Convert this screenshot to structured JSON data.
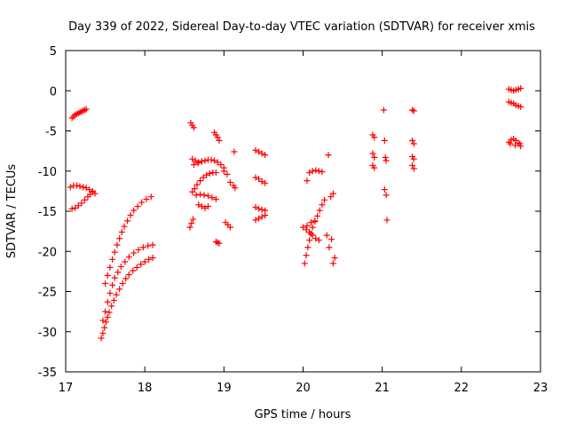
{
  "chart_data": {
    "type": "scatter",
    "title": "Day 339 of 2022, Sidereal Day-to-day VTEC variation (SDTVAR) for receiver xmis",
    "xlabel": "GPS time / hours",
    "ylabel": "SDTVAR / TECUs",
    "xlim": [
      17,
      23
    ],
    "ylim": [
      -35,
      5
    ],
    "xticks": [
      "17",
      "18",
      "19",
      "20",
      "21",
      "22",
      "23"
    ],
    "yticks": [
      "5",
      "0",
      "-5",
      "-10",
      "-15",
      "-20",
      "-25",
      "-30",
      "-35"
    ],
    "grid": false,
    "legend": "none",
    "marker": "plus",
    "color": "#ff0000",
    "series": [
      {
        "points": [
          [
            17.08,
            -3.4
          ],
          [
            17.1,
            -3.2
          ],
          [
            17.12,
            -3.0
          ],
          [
            17.14,
            -2.9
          ],
          [
            17.16,
            -2.8
          ],
          [
            17.18,
            -2.7
          ],
          [
            17.2,
            -2.6
          ],
          [
            17.22,
            -2.5
          ],
          [
            17.24,
            -2.4
          ],
          [
            17.26,
            -2.3
          ],
          [
            17.06,
            -12.0
          ],
          [
            17.1,
            -11.8
          ],
          [
            17.14,
            -11.8
          ],
          [
            17.18,
            -11.9
          ],
          [
            17.22,
            -12.0
          ],
          [
            17.26,
            -12.1
          ],
          [
            17.3,
            -12.3
          ],
          [
            17.34,
            -12.5
          ],
          [
            17.37,
            -12.8
          ],
          [
            17.08,
            -14.7
          ],
          [
            17.12,
            -14.6
          ],
          [
            17.16,
            -14.3
          ],
          [
            17.2,
            -14.0
          ],
          [
            17.24,
            -13.6
          ],
          [
            17.28,
            -13.2
          ],
          [
            17.31,
            -12.9
          ],
          [
            17.34,
            -12.6
          ],
          [
            17.45,
            -30.8
          ],
          [
            17.47,
            -30.2
          ],
          [
            17.49,
            -29.5
          ],
          [
            17.51,
            -28.8
          ],
          [
            17.53,
            -28.2
          ],
          [
            17.55,
            -27.6
          ],
          [
            17.58,
            -26.8
          ],
          [
            17.61,
            -26.1
          ],
          [
            17.64,
            -25.4
          ],
          [
            17.68,
            -24.7
          ],
          [
            17.72,
            -24.0
          ],
          [
            17.76,
            -23.4
          ],
          [
            17.8,
            -22.9
          ],
          [
            17.85,
            -22.4
          ],
          [
            17.9,
            -22.0
          ],
          [
            17.95,
            -21.6
          ],
          [
            18.0,
            -21.3
          ],
          [
            18.05,
            -21.0
          ],
          [
            18.1,
            -20.8
          ],
          [
            17.47,
            -28.6
          ],
          [
            17.5,
            -27.5
          ],
          [
            17.53,
            -26.3
          ],
          [
            17.56,
            -25.2
          ],
          [
            17.59,
            -24.2
          ],
          [
            17.62,
            -23.3
          ],
          [
            17.66,
            -22.6
          ],
          [
            17.7,
            -21.9
          ],
          [
            17.75,
            -21.3
          ],
          [
            17.8,
            -20.7
          ],
          [
            17.86,
            -20.2
          ],
          [
            17.92,
            -19.8
          ],
          [
            17.98,
            -19.5
          ],
          [
            18.04,
            -19.3
          ],
          [
            18.1,
            -19.2
          ],
          [
            17.5,
            -24.0
          ],
          [
            17.53,
            -23.0
          ],
          [
            17.56,
            -22.0
          ],
          [
            17.59,
            -21.0
          ],
          [
            17.62,
            -20.1
          ],
          [
            17.65,
            -19.2
          ],
          [
            17.68,
            -18.4
          ],
          [
            17.71,
            -17.6
          ],
          [
            17.74,
            -16.9
          ],
          [
            17.78,
            -16.2
          ],
          [
            17.82,
            -15.5
          ],
          [
            17.86,
            -14.9
          ],
          [
            17.91,
            -14.4
          ],
          [
            17.96,
            -13.9
          ],
          [
            18.02,
            -13.5
          ],
          [
            18.08,
            -13.2
          ],
          [
            18.58,
            -4.0
          ],
          [
            18.6,
            -4.3
          ],
          [
            18.62,
            -4.6
          ],
          [
            18.6,
            -8.5
          ],
          [
            18.64,
            -8.7
          ],
          [
            18.68,
            -8.9
          ],
          [
            18.72,
            -8.8
          ],
          [
            18.76,
            -8.7
          ],
          [
            18.8,
            -8.6
          ],
          [
            18.84,
            -8.6
          ],
          [
            18.88,
            -8.7
          ],
          [
            18.92,
            -8.9
          ],
          [
            18.96,
            -9.2
          ],
          [
            19.0,
            -9.6
          ],
          [
            18.62,
            -9.2
          ],
          [
            18.67,
            -9.0
          ],
          [
            18.72,
            -8.8
          ],
          [
            18.6,
            -12.6
          ],
          [
            18.63,
            -12.2
          ],
          [
            18.66,
            -11.7
          ],
          [
            18.7,
            -11.2
          ],
          [
            18.74,
            -10.8
          ],
          [
            18.78,
            -10.5
          ],
          [
            18.82,
            -10.3
          ],
          [
            18.86,
            -10.2
          ],
          [
            18.9,
            -10.2
          ],
          [
            18.65,
            -13.0
          ],
          [
            18.7,
            -12.9
          ],
          [
            18.75,
            -13.0
          ],
          [
            18.8,
            -13.1
          ],
          [
            18.85,
            -13.3
          ],
          [
            18.9,
            -13.5
          ],
          [
            18.68,
            -14.2
          ],
          [
            18.72,
            -14.4
          ],
          [
            18.76,
            -14.6
          ],
          [
            18.8,
            -14.4
          ],
          [
            18.57,
            -17.0
          ],
          [
            18.59,
            -16.5
          ],
          [
            18.61,
            -16.0
          ],
          [
            18.9,
            -18.8
          ],
          [
            18.92,
            -18.9
          ],
          [
            18.94,
            -19.0
          ],
          [
            18.88,
            -5.2
          ],
          [
            18.9,
            -5.5
          ],
          [
            18.92,
            -5.8
          ],
          [
            18.94,
            -6.2
          ],
          [
            19.0,
            -10.0
          ],
          [
            19.04,
            -10.4
          ],
          [
            19.08,
            -11.4
          ],
          [
            19.12,
            -11.8
          ],
          [
            19.14,
            -12.1
          ],
          [
            19.02,
            -16.4
          ],
          [
            19.05,
            -16.7
          ],
          [
            19.08,
            -17.0
          ],
          [
            19.13,
            -7.6
          ],
          [
            19.4,
            -7.4
          ],
          [
            19.44,
            -7.6
          ],
          [
            19.48,
            -7.8
          ],
          [
            19.52,
            -8.0
          ],
          [
            19.4,
            -10.8
          ],
          [
            19.44,
            -11.0
          ],
          [
            19.48,
            -11.3
          ],
          [
            19.52,
            -11.5
          ],
          [
            19.4,
            -14.5
          ],
          [
            19.44,
            -14.7
          ],
          [
            19.48,
            -14.8
          ],
          [
            19.52,
            -14.9
          ],
          [
            19.4,
            -16.1
          ],
          [
            19.44,
            -15.9
          ],
          [
            19.48,
            -15.7
          ],
          [
            19.52,
            -15.5
          ],
          [
            20.02,
            -21.5
          ],
          [
            20.04,
            -20.5
          ],
          [
            20.06,
            -19.5
          ],
          [
            20.08,
            -18.6
          ],
          [
            20.1,
            -17.8
          ],
          [
            20.12,
            -17.0
          ],
          [
            20.15,
            -16.3
          ],
          [
            20.18,
            -15.6
          ],
          [
            20.21,
            -14.9
          ],
          [
            20.24,
            -14.2
          ],
          [
            20.27,
            -13.6
          ],
          [
            20.04,
            -17.3
          ],
          [
            20.08,
            -17.6
          ],
          [
            20.12,
            -18.0
          ],
          [
            20.16,
            -18.4
          ],
          [
            20.2,
            -18.6
          ],
          [
            20.0,
            -17.0
          ],
          [
            20.05,
            -16.8
          ],
          [
            20.1,
            -16.4
          ],
          [
            20.15,
            -16.2
          ],
          [
            20.05,
            -11.2
          ],
          [
            20.08,
            -10.2
          ],
          [
            20.12,
            -10.0
          ],
          [
            20.16,
            -9.9
          ],
          [
            20.2,
            -10.0
          ],
          [
            20.24,
            -10.1
          ],
          [
            20.32,
            -8.0
          ],
          [
            20.3,
            -18.0
          ],
          [
            20.33,
            -19.5
          ],
          [
            20.36,
            -18.5
          ],
          [
            20.38,
            -21.5
          ],
          [
            20.4,
            -20.8
          ],
          [
            20.35,
            -13.2
          ],
          [
            20.38,
            -12.8
          ],
          [
            20.88,
            -5.5
          ],
          [
            20.9,
            -5.8
          ],
          [
            20.88,
            -7.8
          ],
          [
            20.9,
            -8.3
          ],
          [
            20.88,
            -9.3
          ],
          [
            20.9,
            -9.6
          ],
          [
            21.02,
            -2.4
          ],
          [
            21.03,
            -6.2
          ],
          [
            21.04,
            -8.3
          ],
          [
            21.05,
            -8.7
          ],
          [
            21.03,
            -12.3
          ],
          [
            21.05,
            -13.0
          ],
          [
            21.06,
            -16.1
          ],
          [
            21.38,
            -2.4
          ],
          [
            21.4,
            -2.5
          ],
          [
            21.38,
            -6.2
          ],
          [
            21.4,
            -6.6
          ],
          [
            21.38,
            -8.2
          ],
          [
            21.4,
            -8.5
          ],
          [
            21.38,
            -9.3
          ],
          [
            21.4,
            -9.7
          ],
          [
            22.6,
            0.2
          ],
          [
            22.63,
            0.1
          ],
          [
            22.66,
            0.0
          ],
          [
            22.69,
            0.1
          ],
          [
            22.72,
            0.2
          ],
          [
            22.75,
            0.3
          ],
          [
            22.6,
            -1.4
          ],
          [
            22.63,
            -1.5
          ],
          [
            22.66,
            -1.6
          ],
          [
            22.69,
            -1.8
          ],
          [
            22.72,
            -1.9
          ],
          [
            22.75,
            -2.0
          ],
          [
            22.6,
            -6.4
          ],
          [
            22.63,
            -6.1
          ],
          [
            22.66,
            -6.0
          ],
          [
            22.69,
            -6.2
          ],
          [
            22.72,
            -6.5
          ],
          [
            22.75,
            -6.9
          ],
          [
            22.62,
            -6.6
          ],
          [
            22.68,
            -6.8
          ],
          [
            22.74,
            -6.6
          ]
        ]
      }
    ]
  }
}
